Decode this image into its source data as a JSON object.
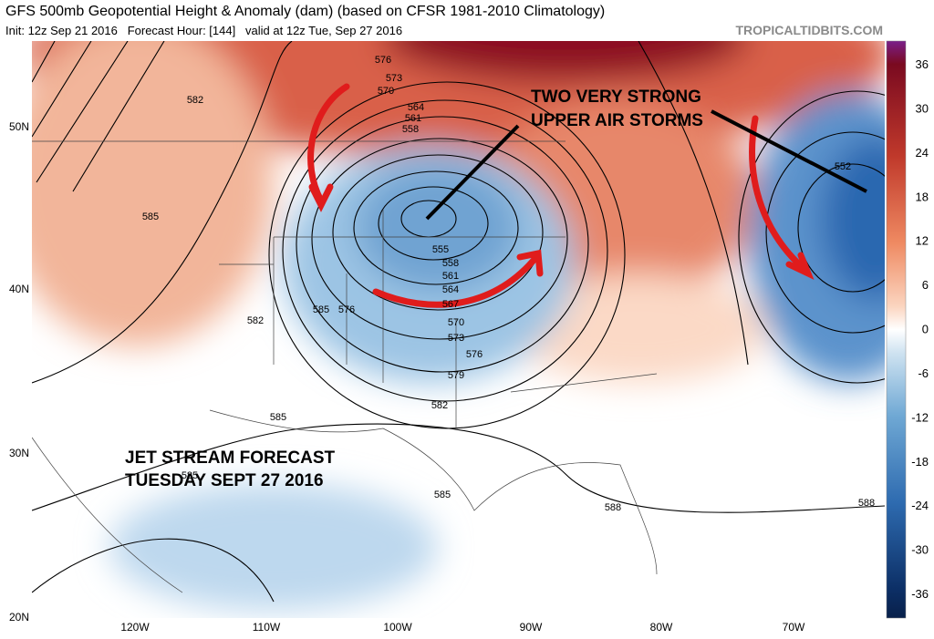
{
  "header": {
    "title": "GFS 500mb Geopotential Height & Anomaly (dam) (based on CFSR 1981-2010 Climatology)",
    "subtitle": "Init: 12z Sep 21 2016   Forecast Hour: [144]   valid at 12z Tue, Sep 27 2016",
    "source": "TROPICALTIDBITS.COM"
  },
  "colorbar": {
    "ticks": [
      "36",
      "30",
      "24",
      "18",
      "12",
      "6",
      "0",
      "-6",
      "-12",
      "-18",
      "-24",
      "-30",
      "-36"
    ]
  },
  "map": {
    "lat_labels": [
      "50N",
      "40N",
      "30N",
      "20N"
    ],
    "lon_labels": [
      "120W",
      "110W",
      "100W",
      "90W",
      "80W",
      "70W"
    ],
    "contour_labels": [
      "576",
      "573",
      "570",
      "564",
      "561",
      "558",
      "555",
      "558",
      "561",
      "564",
      "567",
      "570",
      "573",
      "576",
      "579",
      "582",
      "582",
      "585",
      "582",
      "585",
      "585",
      "585",
      "585",
      "588",
      "588",
      "552",
      "576"
    ]
  },
  "annotations": {
    "storms": "TWO VERY STRONG\nUPPER AIR STORMS",
    "jet": "JET STREAM FORECAST\nTUESDAY SEPT 27 2016"
  }
}
